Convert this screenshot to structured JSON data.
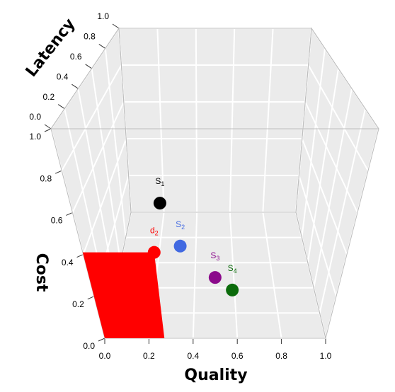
{
  "chart_data": {
    "type": "scatter3d",
    "x_label": "Quality",
    "y_label": "Cost",
    "z_label": "Latency",
    "xlim": [
      0,
      1
    ],
    "ylim": [
      0,
      1
    ],
    "zlim": [
      0,
      1
    ],
    "xticks": [
      {
        "value": 0,
        "label": "0.0"
      },
      0.2,
      0.4,
      0.6,
      0.8,
      {
        "value": 1,
        "label": "1.0"
      }
    ],
    "yticks": [
      {
        "value": 0,
        "label": "0.0"
      },
      0.2,
      0.4,
      0.6,
      0.8,
      {
        "value": 1,
        "label": "1.0"
      }
    ],
    "zticks": [
      {
        "value": 0,
        "label": "0.0"
      },
      0.2,
      0.4,
      0.6,
      0.8,
      {
        "value": 1,
        "label": "1.0"
      }
    ],
    "grid": true,
    "series": [
      {
        "name": "S",
        "subscript": "1",
        "color": "#000000",
        "x": [
          0.31
        ],
        "y": [
          0.645
        ],
        "z": [
          0
        ]
      },
      {
        "name": "S",
        "subscript": "2",
        "color": "#4169e1",
        "x": [
          0.37
        ],
        "y": [
          0.44
        ],
        "z": [
          0
        ]
      },
      {
        "name": "S",
        "subscript": "3",
        "color": "#8b0a8b",
        "x": [
          0.5
        ],
        "y": [
          0.29
        ],
        "z": [
          0
        ]
      },
      {
        "name": "S",
        "subscript": "4",
        "color": "#0b6b0b",
        "x": [
          0.57
        ],
        "y": [
          0.23
        ],
        "z": [
          0
        ]
      },
      {
        "name": "d",
        "subscript": "2",
        "color": "#ff0000",
        "x": [
          0.27
        ],
        "y": [
          0.41
        ],
        "z": [
          0
        ]
      }
    ]
  }
}
